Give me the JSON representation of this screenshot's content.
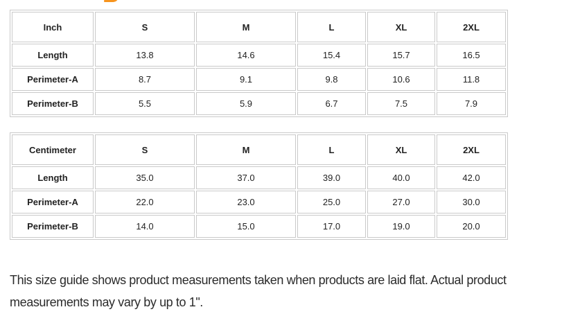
{
  "page": {
    "accent_color": "#F7941E",
    "clipped_heading_letter": "B"
  },
  "tables": [
    {
      "name": "inch",
      "unit_header": "Inch",
      "size_columns": [
        "S",
        "M",
        "L",
        "XL",
        "2XL"
      ],
      "rows": [
        {
          "label": "Length",
          "values": [
            "13.8",
            "14.6",
            "15.4",
            "15.7",
            "16.5"
          ]
        },
        {
          "label": "Perimeter-A",
          "values": [
            "8.7",
            "9.1",
            "9.8",
            "10.6",
            "11.8"
          ]
        },
        {
          "label": "Perimeter-B",
          "values": [
            "5.5",
            "5.9",
            "6.7",
            "7.5",
            "7.9"
          ]
        }
      ]
    },
    {
      "name": "centimeter",
      "unit_header": "Centimeter",
      "size_columns": [
        "S",
        "M",
        "L",
        "XL",
        "2XL"
      ],
      "rows": [
        {
          "label": "Length",
          "values": [
            "35.0",
            "37.0",
            "39.0",
            "40.0",
            "42.0"
          ]
        },
        {
          "label": "Perimeter-A",
          "values": [
            "22.0",
            "23.0",
            "25.0",
            "27.0",
            "30.0"
          ]
        },
        {
          "label": "Perimeter-B",
          "values": [
            "14.0",
            "15.0",
            "17.0",
            "19.0",
            "20.0"
          ]
        }
      ]
    }
  ],
  "note": {
    "text": "This size guide shows product measurements taken when products are laid flat. Actual product measurements may vary by up to 1\"."
  }
}
